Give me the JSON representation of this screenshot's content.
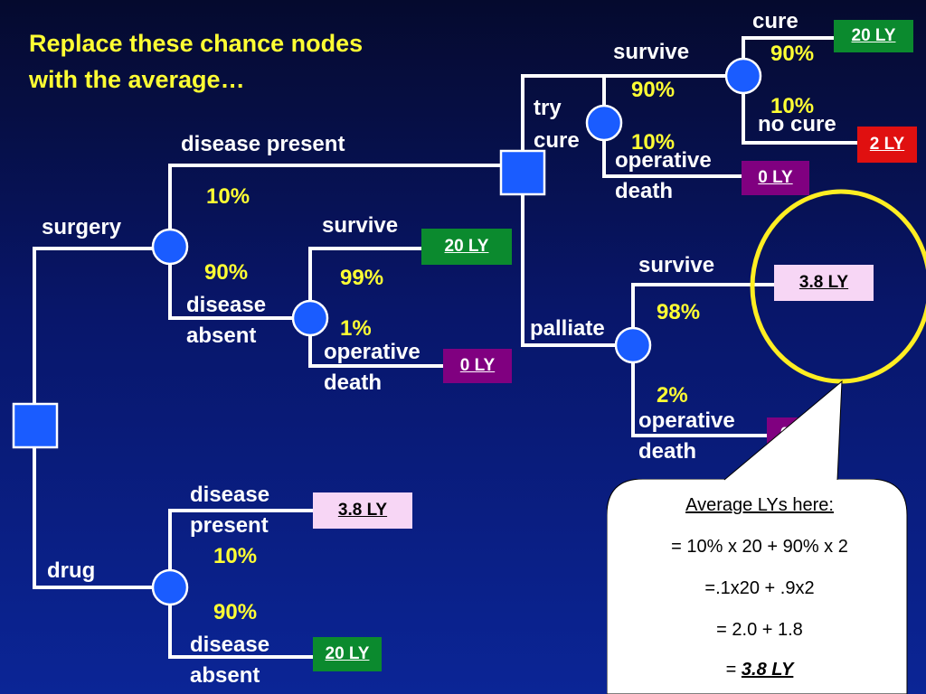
{
  "title": {
    "line1": "Replace these chance nodes",
    "line2": "with the average…"
  },
  "labels": {
    "cure": "cure",
    "p90_cure": "90%",
    "survive_top": "survive",
    "p90_survive": "90%",
    "p10_nocure": "10%",
    "no_cure": "no cure",
    "try": "try",
    "cure2": "cure",
    "p10_opdeath": "10%",
    "operative_top": "operative",
    "death_top": "death",
    "disease_present": "disease present",
    "p10_dp": "10%",
    "surgery": "surgery",
    "survive_mid": "survive",
    "p90_da": "90%",
    "p99": "99%",
    "disease": "disease",
    "absent": "absent",
    "p1": "1%",
    "operative_mid": "operative",
    "death_mid": "death",
    "survive_pal": "survive",
    "p98": "98%",
    "palliate": "palliate",
    "p2": "2%",
    "operative_pal": "operative",
    "death_pal": "death",
    "drug_disease": "disease",
    "drug_present": "present",
    "drug_p10": "10%",
    "drug": "drug",
    "drug_p90": "90%",
    "drug_disease2": "disease",
    "drug_absent": "absent"
  },
  "outcomes": {
    "cure_ly": "20 LY",
    "nocure_ly": "2 LY",
    "opdeath_top_ly": "0 LY",
    "survive_mid_ly": "20 LY",
    "opdeath_mid_ly": "0 LY",
    "palliate_survive_ly": "3.8 LY",
    "palliate_death_ly": "0 LY",
    "drug_present_ly": "3.8 LY",
    "drug_absent_ly": "20 LY"
  },
  "callout": {
    "heading": "Average LYs here:",
    "line1": "= 10% x 20  +  90% x 2",
    "line2": "=.1x20 + .9x2",
    "line3": "= 2.0 + 1.8",
    "result_prefix": "= ",
    "result": "3.8 LY"
  },
  "colors": {
    "title_text": "#ffff33",
    "label_text": "#ffffff",
    "probability_text": "#ffff33",
    "node_fill": "#1a5cff",
    "highlight_circle": "#ffee22",
    "outcome_green": "#0b8a2e",
    "outcome_red": "#e01010",
    "outcome_purple": "#800080",
    "outcome_pink": "#f7d6f5"
  }
}
